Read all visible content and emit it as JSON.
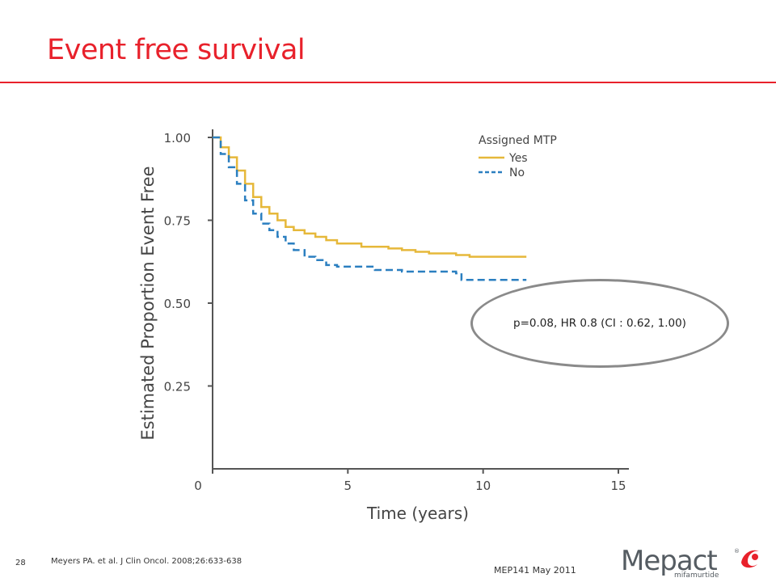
{
  "slide": {
    "title": "Event free survival",
    "page_number": "28",
    "citation": "Meyers PA. et al. J Clin Oncol. 2008;26:633-638",
    "footer_code": "MEP141 May 2011",
    "annotation": "p=0.08, HR 0.8 (CI : 0.62, 1.00)",
    "accent_color": "#e8212b"
  },
  "logo": {
    "wordmark": "Mepact",
    "subtitle": "mifamurtide",
    "registered": "®"
  },
  "chart_data": {
    "type": "line",
    "xlabel": "Time (years)",
    "ylabel": "Estimated Proportion Event Free",
    "xlim": [
      0,
      15
    ],
    "ylim": [
      0,
      1.0
    ],
    "xticks": [
      "0",
      "5",
      "10",
      "15"
    ],
    "yticks": [
      "0.25",
      "0.50",
      "0.75",
      "1.00"
    ],
    "ytick_values": [
      0.25,
      0.5,
      0.75,
      1.0
    ],
    "xtick_values": [
      0,
      5,
      10,
      15
    ],
    "grid": false,
    "legend_title": "Assigned MTP",
    "legend_position": "top-right",
    "series": [
      {
        "name": "Yes",
        "color": "#e6b83a",
        "style": "solid",
        "x": [
          0,
          0.3,
          0.6,
          0.9,
          1.2,
          1.5,
          1.8,
          2.1,
          2.4,
          2.7,
          3.0,
          3.4,
          3.8,
          4.2,
          4.6,
          5.0,
          5.5,
          6.0,
          6.5,
          7.0,
          7.5,
          8.0,
          8.5,
          9.0,
          9.5,
          10.0,
          10.5,
          11.0,
          11.6
        ],
        "y": [
          1.0,
          0.97,
          0.94,
          0.9,
          0.86,
          0.82,
          0.79,
          0.77,
          0.75,
          0.73,
          0.72,
          0.71,
          0.7,
          0.69,
          0.68,
          0.68,
          0.67,
          0.67,
          0.665,
          0.66,
          0.655,
          0.65,
          0.65,
          0.645,
          0.64,
          0.64,
          0.64,
          0.64,
          0.64
        ]
      },
      {
        "name": "No",
        "color": "#2b7fc0",
        "style": "dashed",
        "x": [
          0,
          0.3,
          0.6,
          0.9,
          1.2,
          1.5,
          1.8,
          2.1,
          2.4,
          2.7,
          3.0,
          3.4,
          3.8,
          4.2,
          4.6,
          5.0,
          5.5,
          6.0,
          6.5,
          7.0,
          7.5,
          8.0,
          8.5,
          9.0,
          9.2,
          9.5,
          10.0,
          10.5,
          11.0,
          11.6
        ],
        "y": [
          1.0,
          0.95,
          0.91,
          0.86,
          0.81,
          0.77,
          0.74,
          0.72,
          0.7,
          0.68,
          0.66,
          0.64,
          0.63,
          0.615,
          0.61,
          0.61,
          0.61,
          0.6,
          0.6,
          0.595,
          0.595,
          0.595,
          0.595,
          0.59,
          0.57,
          0.57,
          0.57,
          0.57,
          0.57,
          0.57
        ]
      }
    ]
  }
}
